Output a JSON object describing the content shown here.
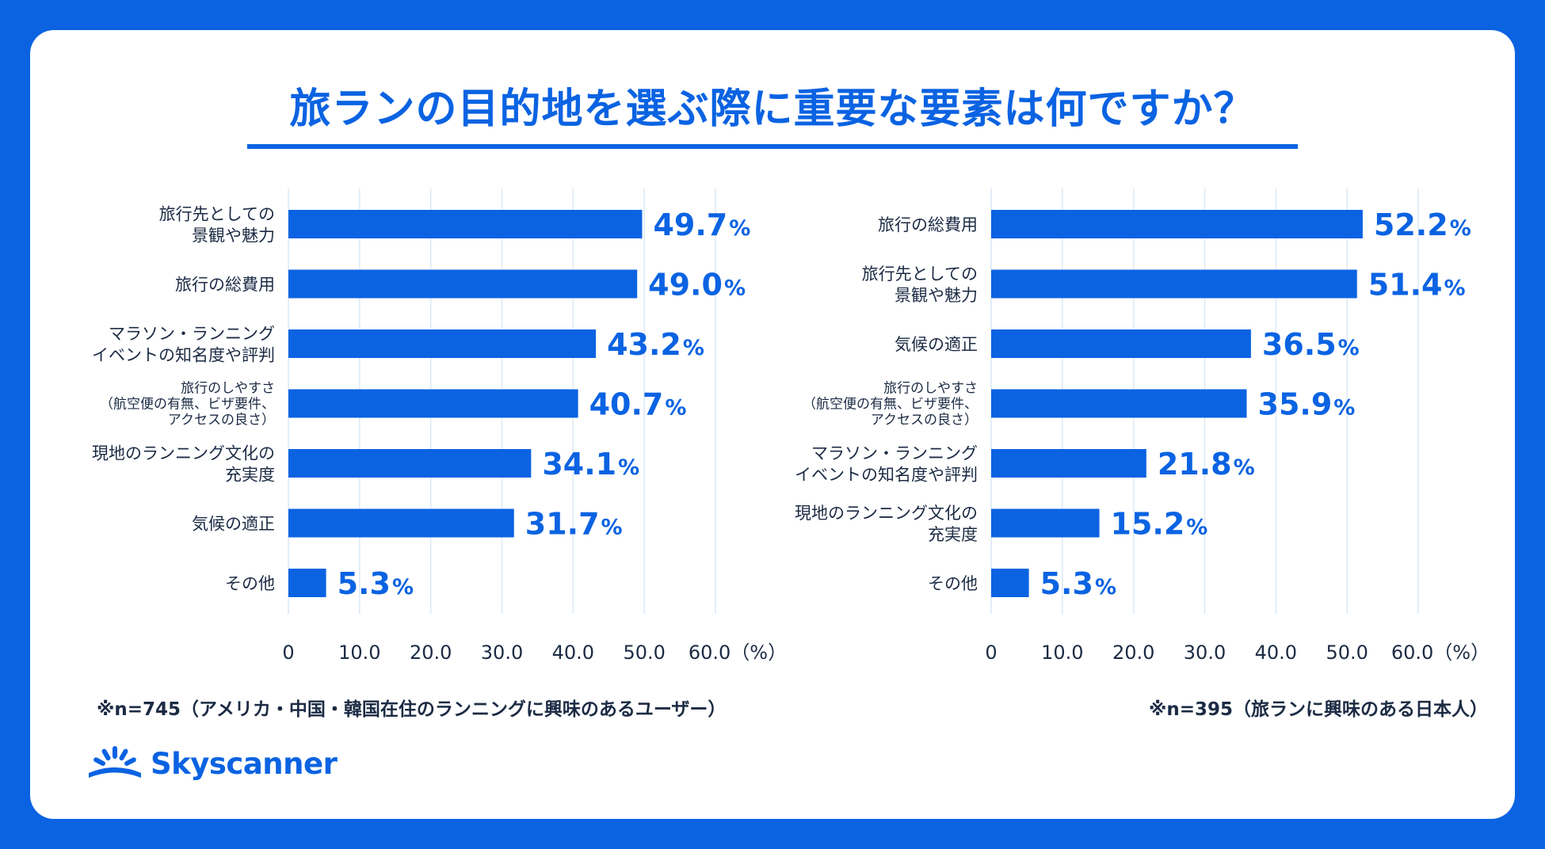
{
  "title": "旅ランの目的地を選ぶ際に重要な要素は何ですか？",
  "colors": {
    "background": "#0b63e2",
    "bar": "#0b63e2",
    "text": "#1c2b44",
    "grid": "#dce9f7"
  },
  "chart_data": [
    {
      "type": "bar",
      "orientation": "horizontal",
      "categories": [
        [
          "旅行先としての",
          "景観や魅力"
        ],
        [
          "旅行の総費用"
        ],
        [
          "マラソン・ランニング",
          "イベントの知名度や評判"
        ],
        [
          "旅行のしやすさ",
          "（航空便の有無、ビザ要件、",
          "アクセスの良さ）"
        ],
        [
          "現地のランニング文化の",
          "充実度"
        ],
        [
          "気候の適正"
        ],
        [
          "その他"
        ]
      ],
      "values": [
        49.7,
        49.0,
        43.2,
        40.7,
        34.1,
        31.7,
        5.3
      ],
      "value_labels": [
        "49.7",
        "49.0",
        "43.2",
        "40.7",
        "34.1",
        "31.7",
        "5.3"
      ],
      "value_suffix": "%",
      "xlim": [
        0,
        60
      ],
      "ticks": [
        "0",
        "10.0",
        "20.0",
        "30.0",
        "40.0",
        "50.0",
        "60.0（%）"
      ],
      "note": "※n=745（アメリカ・中国・韓国在住のランニングに興味のあるユーザー）"
    },
    {
      "type": "bar",
      "orientation": "horizontal",
      "categories": [
        [
          "旅行の総費用"
        ],
        [
          "旅行先としての",
          "景観や魅力"
        ],
        [
          "気候の適正"
        ],
        [
          "旅行のしやすさ",
          "（航空便の有無、ビザ要件、",
          "アクセスの良さ）"
        ],
        [
          "マラソン・ランニング",
          "イベントの知名度や評判"
        ],
        [
          "現地のランニング文化の",
          "充実度"
        ],
        [
          "その他"
        ]
      ],
      "values": [
        52.2,
        51.4,
        36.5,
        35.9,
        21.8,
        15.2,
        5.3
      ],
      "value_labels": [
        "52.2",
        "51.4",
        "36.5",
        "35.9",
        "21.8",
        "15.2",
        "5.3"
      ],
      "value_suffix": "%",
      "xlim": [
        0,
        60
      ],
      "ticks": [
        "0",
        "10.0",
        "20.0",
        "30.0",
        "40.0",
        "50.0",
        "60.0（%）"
      ],
      "note": "※n=395（旅ランに興味のある日本人）"
    }
  ],
  "logo": {
    "text": "Skyscanner",
    "icon": "sunrise-icon"
  }
}
